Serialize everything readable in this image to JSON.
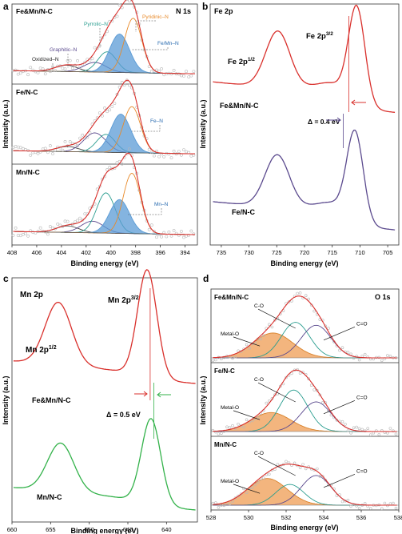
{
  "colors": {
    "red": "#d9302c",
    "purple": "#5b4a8e",
    "green": "#33b24a",
    "teal": "#2a9d8f",
    "blue_fill": "#5b9bd5",
    "orange": "#e88a2a",
    "orange_fill": "#f0a35e",
    "darkblue": "#2b3a8c",
    "points": "#b8b8b8"
  },
  "chart_data": [
    {
      "panel": "a",
      "type": "line",
      "title": "N 1s",
      "xlabel": "Binding energy (eV)",
      "ylabel": "Intensity (a.u.)",
      "xlim": [
        408,
        393
      ],
      "xticks": [
        "408",
        "406",
        "404",
        "402",
        "400",
        "398",
        "396",
        "394"
      ],
      "subplots": [
        {
          "sample": "Fe&Mn/N-C",
          "peaks": [
            {
              "name": "Oxidized-N",
              "center": 403.6,
              "height": 0.1
            },
            {
              "name": "Graphitic-N",
              "center": 401.3,
              "height": 0.15
            },
            {
              "name": "Pyrrolic-N",
              "center": 400.3,
              "height": 0.32
            },
            {
              "name": "Fe/Mn-N",
              "center": 399.3,
              "height": 0.6
            },
            {
              "name": "Pyridinic-N",
              "center": 398.2,
              "height": 0.85
            }
          ]
        },
        {
          "sample": "Fe/N-C",
          "peaks": [
            {
              "name": "Oxidized-N",
              "center": 403.5,
              "height": 0.08
            },
            {
              "name": "Graphitic-N",
              "center": 401.3,
              "height": 0.3
            },
            {
              "name": "Pyrrolic-N",
              "center": 400.4,
              "height": 0.28
            },
            {
              "name": "Fe-N",
              "center": 399.2,
              "height": 0.6
            },
            {
              "name": "Pyridinic-N",
              "center": 398.3,
              "height": 0.72
            }
          ]
        },
        {
          "sample": "Mn/N-C",
          "peaks": [
            {
              "name": "Oxidized-N",
              "center": 403.5,
              "height": 0.1
            },
            {
              "name": "Graphitic-N",
              "center": 401.5,
              "height": 0.18
            },
            {
              "name": "Pyrrolic-N",
              "center": 400.4,
              "height": 0.62
            },
            {
              "name": "Mn-N",
              "center": 399.3,
              "height": 0.52
            },
            {
              "name": "Pyridinic-N",
              "center": 398.3,
              "height": 0.93
            }
          ]
        }
      ],
      "annotations": {
        "oxidized": "Oxidized–N",
        "graphitic": "Graphitic–N",
        "pyrrolic": "Pyrrolic–N",
        "pyridinic": "Pyridinic–N",
        "femn": "Fe/Mn–N",
        "fen": "Fe–N",
        "mnn": "Mn–N"
      }
    },
    {
      "panel": "b",
      "type": "line",
      "title": "Fe 2p",
      "xlabel": "Binding energy (eV)",
      "ylabel": "Intensity (a.u.)",
      "xlim": [
        737,
        703
      ],
      "xticks": [
        "735",
        "730",
        "725",
        "720",
        "715",
        "710",
        "705"
      ],
      "series": [
        {
          "name": "Fe&Mn/N-C",
          "peaks": [
            {
              "center": 724.8,
              "height": 0.55
            },
            {
              "center": 710.6,
              "height": 0.95
            }
          ]
        },
        {
          "name": "Fe/N-C",
          "peaks": [
            {
              "center": 724.9,
              "height": 0.55
            },
            {
              "center": 710.9,
              "height": 0.95
            }
          ]
        }
      ],
      "annotations": {
        "peak1": "Fe 2p",
        "peak1_sup": "1/2",
        "peak2": "Fe 2p",
        "peak2_sup": "3/2",
        "delta": "Δ = 0.4 eV"
      }
    },
    {
      "panel": "c",
      "type": "line",
      "title": "Mn 2p",
      "xlabel": "Binding energy (eV)",
      "ylabel": "Intensity (a.u.)",
      "xlim": [
        660,
        636
      ],
      "xticks": [
        "660",
        "655",
        "650",
        "645",
        "640"
      ],
      "series": [
        {
          "name": "Fe&Mn/N-C",
          "peaks": [
            {
              "center": 654.0,
              "height": 0.58
            },
            {
              "center": 642.5,
              "height": 1.0
            }
          ]
        },
        {
          "name": "Mn/N-C",
          "peaks": [
            {
              "center": 653.7,
              "height": 0.45
            },
            {
              "center": 642.0,
              "height": 0.8
            }
          ]
        }
      ],
      "annotations": {
        "peak1": "Mn 2p",
        "peak1_sup": "1/2",
        "peak2": "Mn 2p",
        "peak2_sup": "3/2",
        "delta": "Δ = 0.5 eV"
      }
    },
    {
      "panel": "d",
      "type": "line",
      "title": "O 1s",
      "xlabel": "Binding energy (eV)",
      "ylabel": "Intensity (a.u.)",
      "xlim": [
        528,
        538
      ],
      "xticks": [
        "528",
        "530",
        "532",
        "534",
        "536",
        "538"
      ],
      "subplots": [
        {
          "sample": "Fe&Mn/N-C",
          "peaks": [
            {
              "name": "Metal-O",
              "center": 531.3,
              "height": 0.42
            },
            {
              "name": "C-O",
              "center": 532.5,
              "height": 0.6
            },
            {
              "name": "C=O",
              "center": 533.6,
              "height": 0.55
            }
          ]
        },
        {
          "sample": "Fe/N-C",
          "peaks": [
            {
              "name": "Metal-O",
              "center": 531.2,
              "height": 0.32
            },
            {
              "name": "C-O",
              "center": 532.4,
              "height": 0.7
            },
            {
              "name": "C=O",
              "center": 533.6,
              "height": 0.5
            }
          ]
        },
        {
          "sample": "Mn/N-C",
          "peaks": [
            {
              "name": "Metal-O",
              "center": 531.0,
              "height": 0.45
            },
            {
              "name": "C-O",
              "center": 532.2,
              "height": 0.35
            },
            {
              "name": "C=O",
              "center": 533.6,
              "height": 0.5
            }
          ]
        }
      ],
      "annotations": {
        "metalo": "Metal-O",
        "co": "C-O",
        "ceo": "C=O"
      }
    }
  ],
  "panel_letters": {
    "a": "a",
    "b": "b",
    "c": "c",
    "d": "d"
  }
}
